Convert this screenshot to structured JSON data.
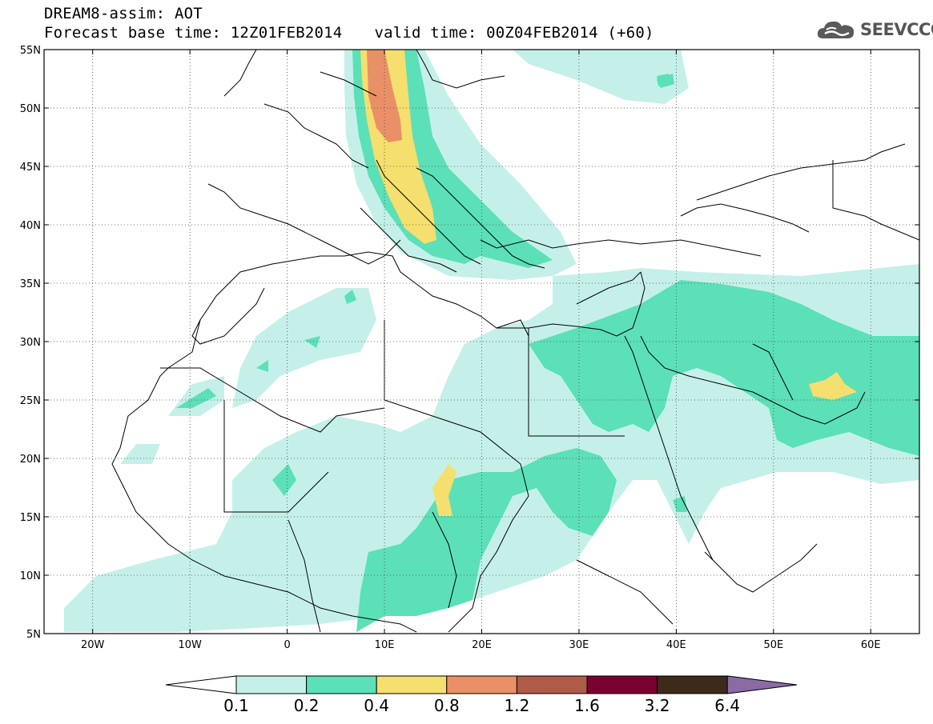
{
  "header": {
    "line1": "DREAM8-assim: AOT",
    "base_label": "Forecast base time: 12Z01FEB2014",
    "valid_label": "valid time: 00Z04FEB2014 (+60)"
  },
  "logo": {
    "text": "SEEVCCC",
    "icon": "cloud-icon"
  },
  "map": {
    "lon_range": [
      -25,
      65
    ],
    "lat_range": [
      5,
      55
    ],
    "lat_ticks": [
      {
        "value": 55,
        "label": "55N"
      },
      {
        "value": 50,
        "label": "50N"
      },
      {
        "value": 45,
        "label": "45N"
      },
      {
        "value": 40,
        "label": "40N"
      },
      {
        "value": 35,
        "label": "35N"
      },
      {
        "value": 30,
        "label": "30N"
      },
      {
        "value": 25,
        "label": "25N"
      },
      {
        "value": 20,
        "label": "20N"
      },
      {
        "value": 15,
        "label": "15N"
      },
      {
        "value": 10,
        "label": "10N"
      },
      {
        "value": 5,
        "label": "5N"
      }
    ],
    "lon_ticks": [
      {
        "value": -20,
        "label": "20W"
      },
      {
        "value": -10,
        "label": "10W"
      },
      {
        "value": 0,
        "label": "0"
      },
      {
        "value": 10,
        "label": "10E"
      },
      {
        "value": 20,
        "label": "20E"
      },
      {
        "value": 30,
        "label": "30E"
      },
      {
        "value": 40,
        "label": "40E"
      },
      {
        "value": 50,
        "label": "50E"
      },
      {
        "value": 60,
        "label": "60E"
      }
    ],
    "grid": "dotted",
    "colors": {
      "c0": "#c5f0ea",
      "c1": "#5ce0b8",
      "c2": "#f5df6e",
      "c3": "#ea9066",
      "coast": "#000000"
    }
  },
  "colorbar": {
    "colors": [
      "#ffffff",
      "#c5f0ea",
      "#5ce0b8",
      "#f5df6e",
      "#ea9066",
      "#b05a48",
      "#7a0030",
      "#3d2a1a",
      "#8c6aa6"
    ],
    "labels": [
      "0.1",
      "0.2",
      "0.4",
      "0.8",
      "1.2",
      "1.6",
      "3.2",
      "6.4"
    ]
  }
}
